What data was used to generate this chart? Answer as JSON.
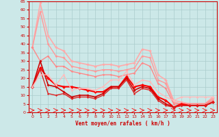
{
  "xlabel": "Vent moyen/en rafales ( km/h )",
  "background_color": "#cce8e8",
  "grid_color": "#aacccc",
  "xlim": [
    -0.5,
    23.5
  ],
  "ylim": [
    0,
    65
  ],
  "xticks": [
    0,
    1,
    2,
    3,
    4,
    5,
    6,
    7,
    8,
    9,
    10,
    11,
    12,
    13,
    14,
    15,
    16,
    17,
    18,
    19,
    20,
    21,
    22,
    23
  ],
  "yticks": [
    0,
    5,
    10,
    15,
    20,
    25,
    30,
    35,
    40,
    45,
    50,
    55,
    60,
    65
  ],
  "series": [
    {
      "x": [
        0,
        1,
        2,
        3,
        4,
        5,
        6,
        7,
        8,
        9,
        10,
        11,
        12,
        13,
        14,
        15,
        16,
        17,
        18,
        19,
        20,
        21,
        22,
        23
      ],
      "y": [
        38,
        64,
        45,
        38,
        36,
        30,
        29,
        28,
        27,
        28,
        28,
        27,
        28,
        29,
        37,
        36,
        22,
        19,
        7,
        6,
        5,
        5,
        5,
        9
      ],
      "color": "#ffaaaa",
      "linewidth": 1.2,
      "marker": "D",
      "markersize": 2.2
    },
    {
      "x": [
        0,
        1,
        2,
        3,
        4,
        5,
        6,
        7,
        8,
        9,
        10,
        11,
        12,
        13,
        14,
        15,
        16,
        17,
        18,
        19,
        20,
        21,
        22,
        23
      ],
      "y": [
        38,
        59,
        40,
        33,
        32,
        27,
        26,
        25,
        24,
        25,
        25,
        24,
        25,
        26,
        33,
        32,
        19,
        17,
        6,
        5,
        5,
        5,
        5,
        8
      ],
      "color": "#ff9999",
      "linewidth": 1.0,
      "marker": "D",
      "markersize": 2.0
    },
    {
      "x": [
        0,
        1,
        2,
        3,
        4,
        5,
        6,
        7,
        8,
        9,
        10,
        11,
        12,
        13,
        14,
        15,
        16,
        17,
        18,
        19,
        20,
        21,
        22,
        23
      ],
      "y": [
        38,
        30,
        33,
        27,
        27,
        24,
        23,
        22,
        21,
        22,
        22,
        21,
        22,
        23,
        29,
        27,
        17,
        14,
        5,
        5,
        5,
        5,
        5,
        7
      ],
      "color": "#ff8888",
      "linewidth": 1.0,
      "marker": "D",
      "markersize": 1.8
    },
    {
      "x": [
        0,
        1,
        2,
        3,
        4,
        5,
        6,
        7,
        8,
        9,
        10,
        11,
        12,
        13,
        14,
        15,
        16,
        17,
        18,
        19,
        20,
        21,
        22,
        23
      ],
      "y": [
        15,
        26,
        20,
        16,
        15,
        15,
        14,
        13,
        12,
        12,
        15,
        15,
        21,
        15,
        16,
        15,
        9,
        7,
        3,
        5,
        4,
        4,
        4,
        6
      ],
      "color": "#ff0000",
      "linewidth": 1.5,
      "marker": "D",
      "markersize": 2.5
    },
    {
      "x": [
        0,
        1,
        2,
        3,
        4,
        5,
        6,
        7,
        8,
        9,
        10,
        11,
        12,
        13,
        14,
        15,
        16,
        17,
        18,
        19,
        20,
        21,
        22,
        23
      ],
      "y": [
        15,
        30,
        16,
        15,
        12,
        9,
        10,
        10,
        9,
        11,
        15,
        15,
        20,
        13,
        15,
        14,
        8,
        5,
        3,
        4,
        4,
        4,
        4,
        6
      ],
      "color": "#cc0000",
      "linewidth": 1.2,
      "marker": "D",
      "markersize": 2.0
    },
    {
      "x": [
        0,
        1,
        2,
        3,
        4,
        5,
        6,
        7,
        8,
        9,
        10,
        11,
        12,
        13,
        14,
        15,
        16,
        17,
        18,
        19,
        20,
        21,
        22,
        23
      ],
      "y": [
        15,
        25,
        11,
        10,
        11,
        8,
        9,
        9,
        8,
        10,
        14,
        14,
        19,
        11,
        14,
        13,
        7,
        4,
        3,
        4,
        4,
        4,
        4,
        6
      ],
      "color": "#dd2222",
      "linewidth": 1.0,
      "marker": "D",
      "markersize": 1.6
    },
    {
      "x": [
        0,
        1,
        2,
        3,
        4,
        5,
        6,
        7,
        8,
        9,
        10,
        11,
        12,
        13,
        14,
        15,
        16,
        17,
        18,
        19,
        20,
        21,
        22,
        23
      ],
      "y": [
        15,
        22,
        22,
        16,
        22,
        13,
        14,
        14,
        13,
        15,
        19,
        19,
        24,
        16,
        19,
        18,
        12,
        9,
        7,
        9,
        9,
        9,
        9,
        9
      ],
      "color": "#ffbbbb",
      "linewidth": 1.0,
      "marker": "D",
      "markersize": 1.8
    }
  ]
}
